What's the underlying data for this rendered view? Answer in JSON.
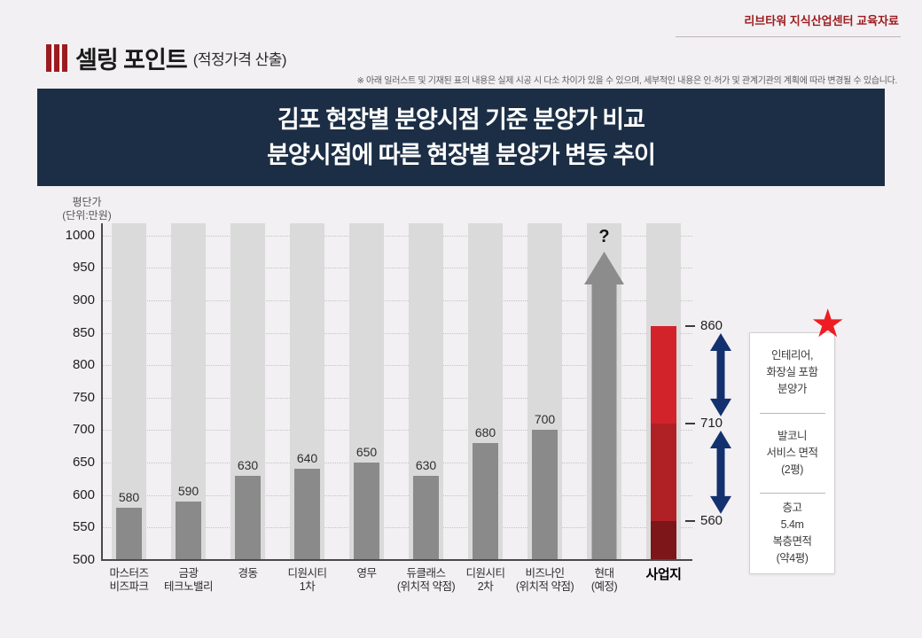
{
  "page": {
    "bg": "#f2f0f2"
  },
  "header": {
    "corner_label": "리브타워 지식산업센터 교육자료",
    "accent_color": "#9b1c20",
    "title": "셀링 포인트",
    "title_suffix": "(적정가격 산출)",
    "disclaimer": "※ 아래 일러스트 및 기재된 표의 내용은 실제 시공 시 다소 차이가 있을 수 있으며, 세부적인 내용은 인·허가 및 관계기관의 계획에 따라 변경될 수 있습니다."
  },
  "banner": {
    "bg": "#1b2e45",
    "line1": "김포 현장별 분양시점 기준 분양가 비교",
    "line2": "분양시점에 따른 현장별 분양가 변동 추이"
  },
  "chart_data": {
    "type": "bar",
    "ylabel": "평단가\n(단위:만원)",
    "ylim": [
      500,
      1000
    ],
    "ytick_step": 50,
    "grid": "dotted-horizontal",
    "column_bg_color": "#dadada",
    "bar_color": "#8a8a8a",
    "range_arrow_color": "#14316f",
    "bars": [
      {
        "label": "마스터즈\n비즈파크",
        "value": 580
      },
      {
        "label": "금광\n테크노밸리",
        "value": 590
      },
      {
        "label": "경동",
        "value": 630
      },
      {
        "label": "디원시티\n1차",
        "value": 640
      },
      {
        "label": "영무",
        "value": 650
      },
      {
        "label": "듀클래스\n(위치적 약점)",
        "value": 630
      },
      {
        "label": "디원시티\n2차",
        "value": 680
      },
      {
        "label": "비즈나인\n(위치적 약점)",
        "value": 700
      },
      {
        "label": "현대\n(예정)",
        "value": null,
        "marker": "up-arrow",
        "marker_label": "?",
        "marker_color": "#8c8c8c",
        "marker_top_value": 975
      },
      {
        "label": "사업지",
        "emphasis": true,
        "stacked_segments": [
          {
            "from": 500,
            "to": 560,
            "color": "#7d1618"
          },
          {
            "from": 560,
            "to": 710,
            "color": "#b02125"
          },
          {
            "from": 710,
            "to": 860,
            "color": "#d2232a"
          }
        ],
        "level_labels": [
          860,
          710,
          560
        ],
        "range_arrows": [
          [
            710,
            860
          ],
          [
            560,
            710
          ]
        ]
      }
    ]
  },
  "annotation_card": {
    "star_color": "#ed1c24",
    "star_glyph": "★",
    "items": [
      {
        "text": "인테리어,\n화장실 포함\n분양가"
      },
      {
        "text": "발코니\n서비스 면적\n(2평)"
      },
      {
        "text": "층고\n5.4m\n복층면적\n(약4평)"
      }
    ]
  }
}
